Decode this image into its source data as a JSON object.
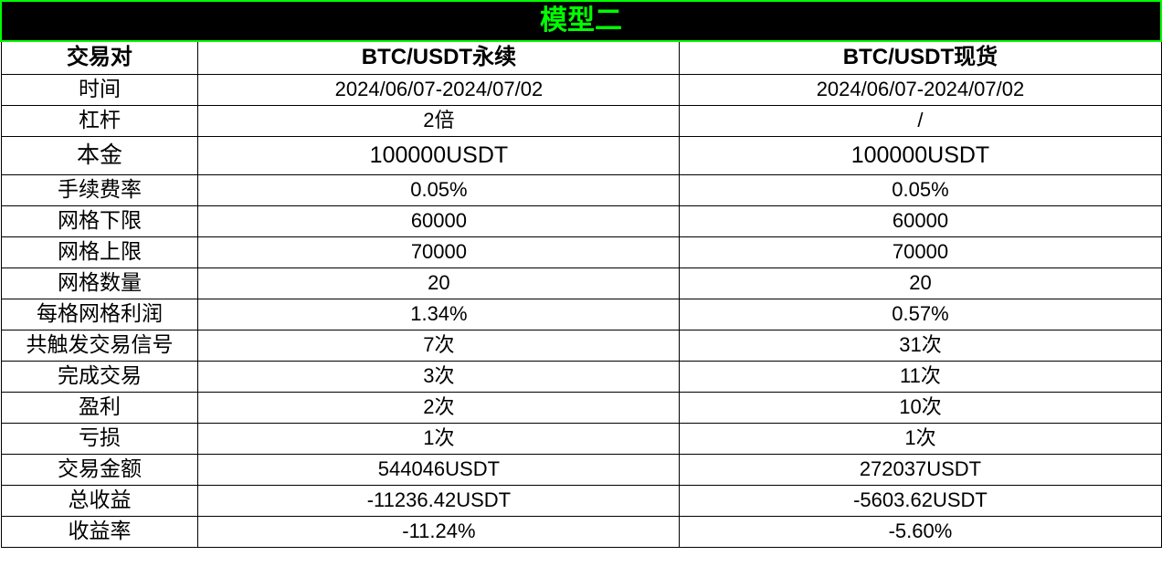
{
  "title": "模型二",
  "columns": [
    "交易对",
    "BTC/USDT永续",
    "BTC/USDT现货"
  ],
  "col_widths_pct": [
    17,
    41.5,
    41.5
  ],
  "rows": [
    {
      "label": "时间",
      "c1": "2024/06/07-2024/07/02",
      "c2": "2024/06/07-2024/07/02",
      "big": false
    },
    {
      "label": "杠杆",
      "c1": "2倍",
      "c2": "/",
      "big": false
    },
    {
      "label": "本金",
      "c1": "100000USDT",
      "c2": "100000USDT",
      "big": true
    },
    {
      "label": "手续费率",
      "c1": "0.05%",
      "c2": "0.05%",
      "big": false
    },
    {
      "label": "网格下限",
      "c1": "60000",
      "c2": "60000",
      "big": false
    },
    {
      "label": "网格上限",
      "c1": "70000",
      "c2": "70000",
      "big": false
    },
    {
      "label": "网格数量",
      "c1": "20",
      "c2": "20",
      "big": false
    },
    {
      "label": "每格网格利润",
      "c1": "1.34%",
      "c2": "0.57%",
      "big": false
    },
    {
      "label": "共触发交易信号",
      "c1": "7次",
      "c2": "31次",
      "big": false
    },
    {
      "label": "完成交易",
      "c1": "3次",
      "c2": "11次",
      "big": false
    },
    {
      "label": "盈利",
      "c1": "2次",
      "c2": "10次",
      "big": false
    },
    {
      "label": "亏损",
      "c1": "1次",
      "c2": "1次",
      "big": false
    },
    {
      "label": "交易金额",
      "c1": "544046USDT",
      "c2": "272037USDT",
      "big": false
    },
    {
      "label": "总收益",
      "c1": "-11236.42USDT",
      "c2": "-5603.62USDT",
      "big": false
    },
    {
      "label": "收益率",
      "c1": "-11.24%",
      "c2": "-5.60%",
      "big": false
    }
  ],
  "style": {
    "title_bg": "#000000",
    "title_fg": "#00ff00",
    "title_border": "#00ff00",
    "cell_border": "#000000",
    "bg": "#ffffff",
    "header_fontsize": 24,
    "title_fontsize": 30,
    "label_fontsize": 23,
    "value_fontsize": 22
  }
}
